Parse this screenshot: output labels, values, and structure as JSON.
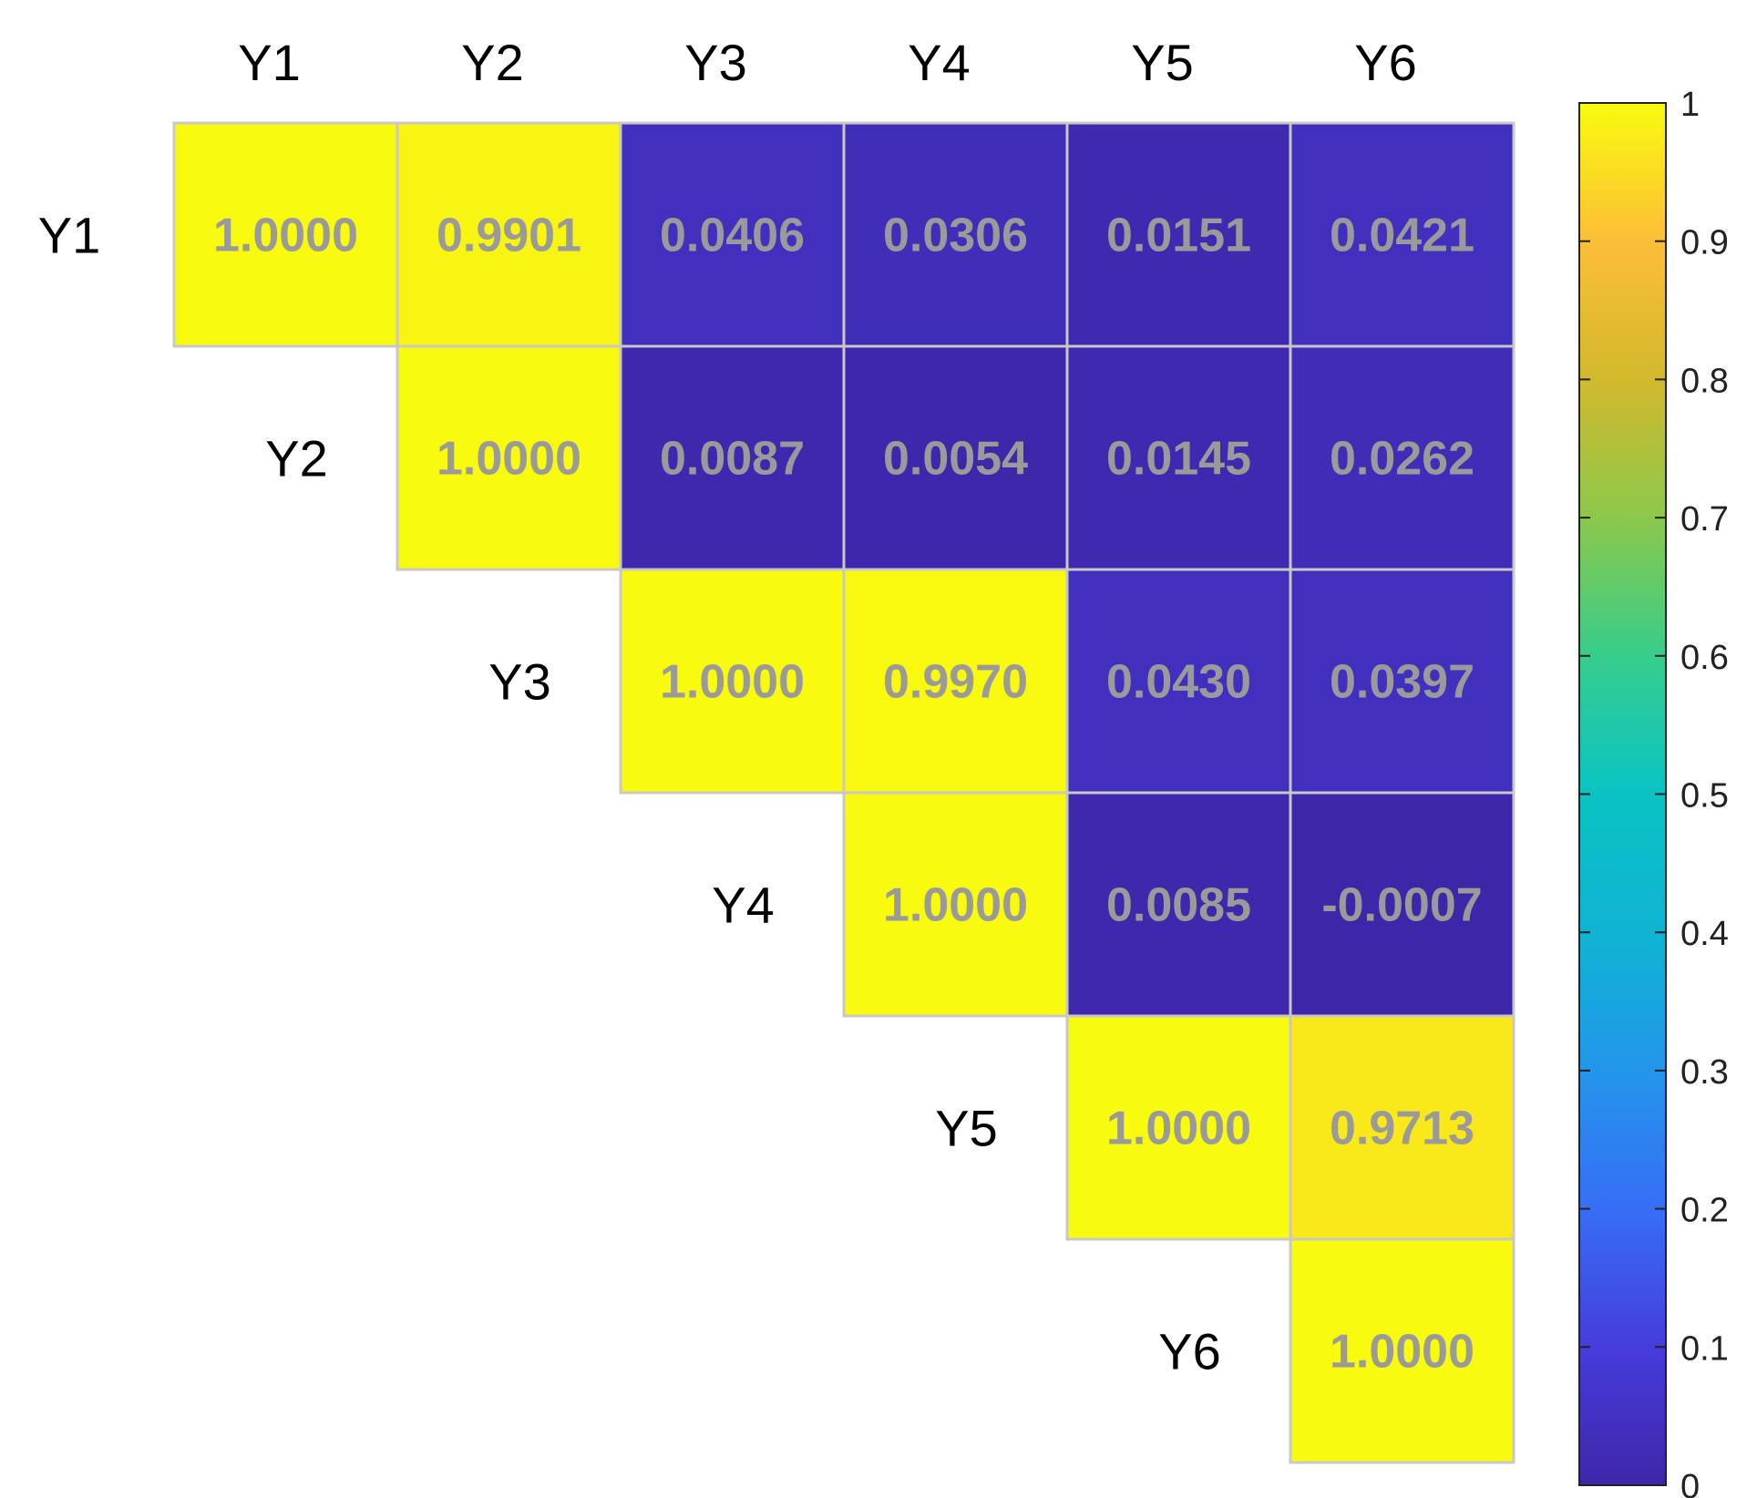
{
  "chart_data": {
    "type": "heatmap",
    "title": "",
    "xlabel": "",
    "ylabel": "",
    "column_labels": [
      "Y1",
      "Y2",
      "Y3",
      "Y4",
      "Y5",
      "Y6"
    ],
    "row_labels": [
      "Y1",
      "Y2",
      "Y3",
      "Y4",
      "Y5",
      "Y6"
    ],
    "layout": "upper-triangular",
    "cells": [
      {
        "row": 0,
        "col": 0,
        "value": 1.0,
        "label": "1.0000"
      },
      {
        "row": 0,
        "col": 1,
        "value": 0.9901,
        "label": "0.9901"
      },
      {
        "row": 0,
        "col": 2,
        "value": 0.0406,
        "label": "0.0406"
      },
      {
        "row": 0,
        "col": 3,
        "value": 0.0306,
        "label": "0.0306"
      },
      {
        "row": 0,
        "col": 4,
        "value": 0.0151,
        "label": "0.0151"
      },
      {
        "row": 0,
        "col": 5,
        "value": 0.0421,
        "label": "0.0421"
      },
      {
        "row": 1,
        "col": 1,
        "value": 1.0,
        "label": "1.0000"
      },
      {
        "row": 1,
        "col": 2,
        "value": 0.0087,
        "label": "0.0087"
      },
      {
        "row": 1,
        "col": 3,
        "value": 0.0054,
        "label": "0.0054"
      },
      {
        "row": 1,
        "col": 4,
        "value": 0.0145,
        "label": "0.0145"
      },
      {
        "row": 1,
        "col": 5,
        "value": 0.0262,
        "label": "0.0262"
      },
      {
        "row": 2,
        "col": 2,
        "value": 1.0,
        "label": "1.0000"
      },
      {
        "row": 2,
        "col": 3,
        "value": 0.997,
        "label": "0.9970"
      },
      {
        "row": 2,
        "col": 4,
        "value": 0.043,
        "label": "0.0430"
      },
      {
        "row": 2,
        "col": 5,
        "value": 0.0397,
        "label": "0.0397"
      },
      {
        "row": 3,
        "col": 3,
        "value": 1.0,
        "label": "1.0000"
      },
      {
        "row": 3,
        "col": 4,
        "value": 0.0085,
        "label": "0.0085"
      },
      {
        "row": 3,
        "col": 5,
        "value": -0.0007,
        "label": "-0.0007"
      },
      {
        "row": 4,
        "col": 4,
        "value": 1.0,
        "label": "1.0000"
      },
      {
        "row": 4,
        "col": 5,
        "value": 0.9713,
        "label": "0.9713"
      },
      {
        "row": 5,
        "col": 5,
        "value": 1.0,
        "label": "1.0000"
      }
    ],
    "colorbar": {
      "range": [
        0,
        1
      ],
      "colormap": "parula",
      "ticks": [
        0,
        0.1,
        0.2,
        0.3,
        0.4,
        0.5,
        0.6,
        0.7,
        0.8,
        0.9,
        1
      ],
      "tick_labels": [
        "0",
        "0.1",
        "0.2",
        "0.3",
        "0.4",
        "0.5",
        "0.6",
        "0.7",
        "0.8",
        "0.9",
        "1"
      ],
      "placement": "right"
    },
    "grid": true,
    "cell_border_color": "#c8c8c8",
    "cell_label_color": "#9a9a9a"
  }
}
